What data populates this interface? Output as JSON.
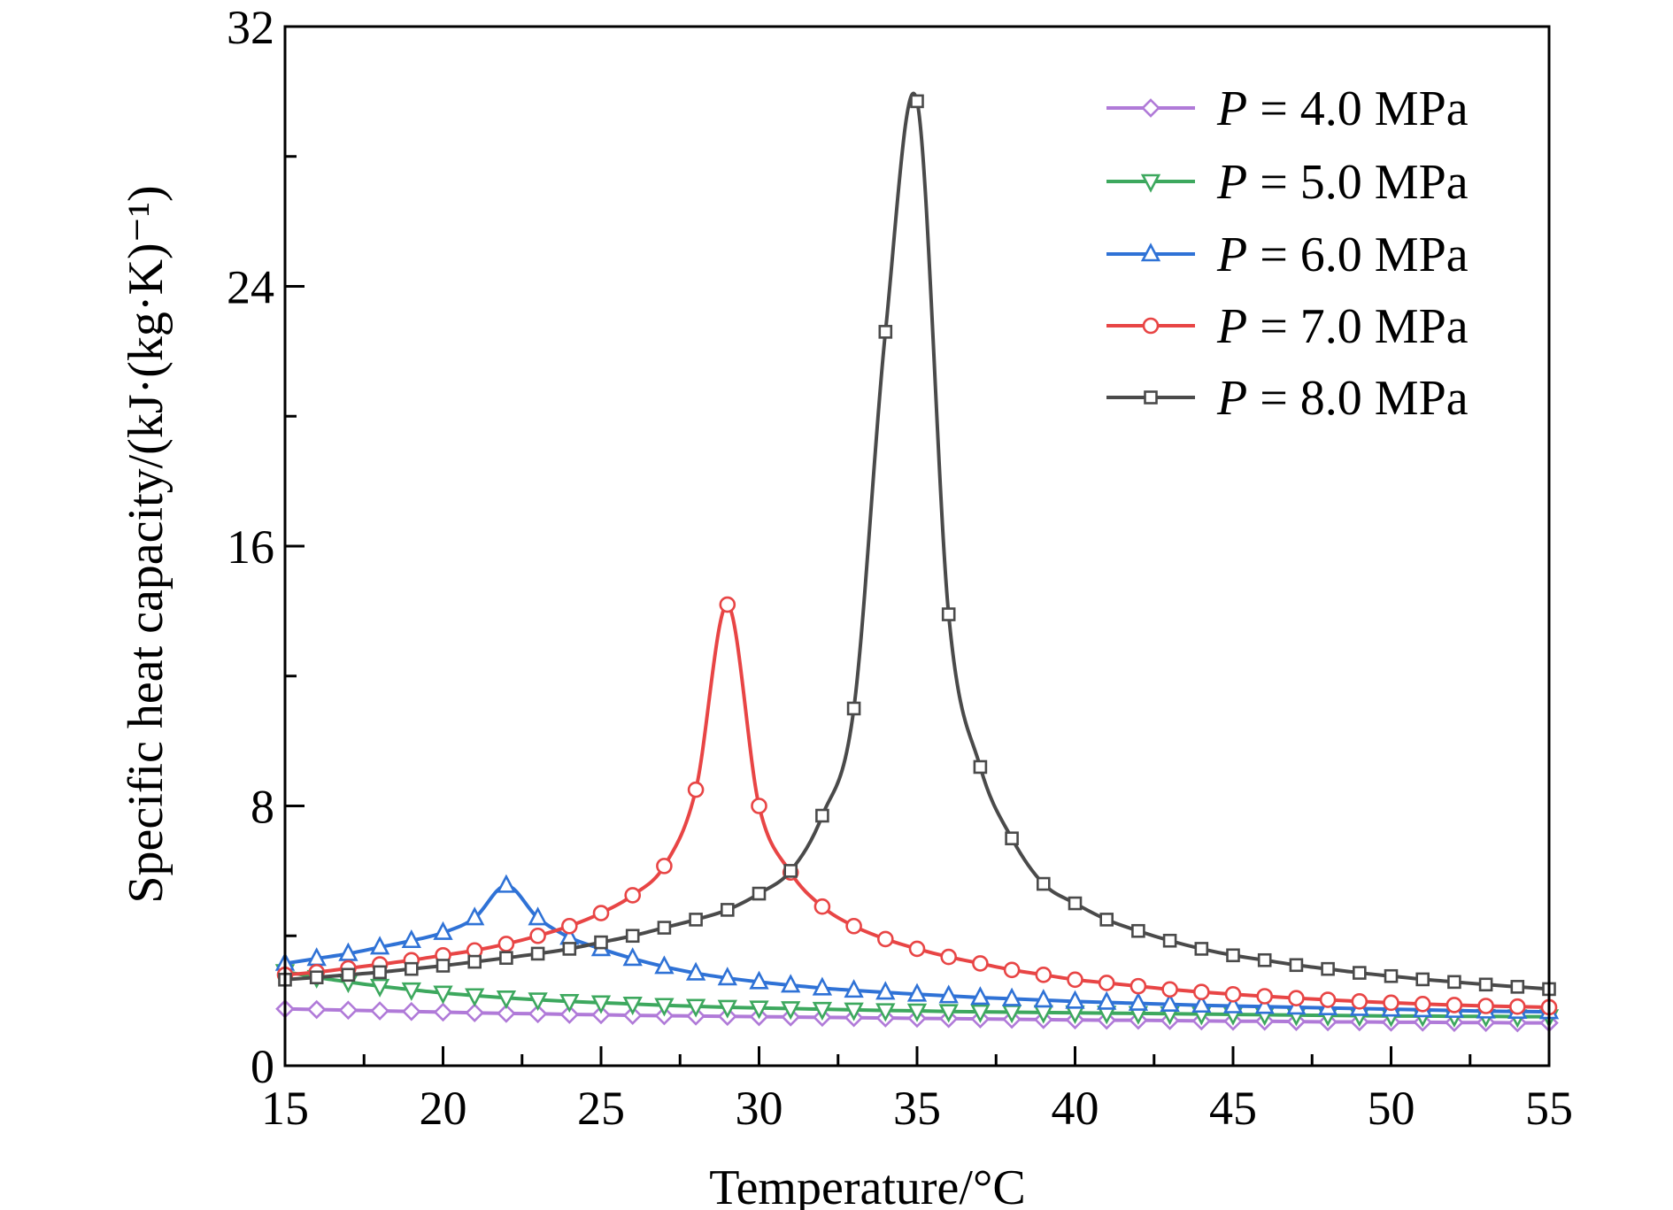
{
  "chart_data": {
    "type": "line",
    "title": "",
    "xlabel": "Temperature/°C",
    "ylabel": "Specific heat capacity/(kJ·(kg·K)⁻¹)",
    "xlim": [
      15,
      55
    ],
    "ylim": [
      0,
      32
    ],
    "xticks": [
      "15",
      "20",
      "25",
      "30",
      "35",
      "40",
      "45",
      "50",
      "55"
    ],
    "yticks": [
      "0",
      "8",
      "16",
      "24",
      "32"
    ],
    "legend_position": "top-right",
    "x": [
      15,
      16,
      17,
      18,
      19,
      20,
      21,
      22,
      23,
      24,
      25,
      26,
      27,
      28,
      29,
      30,
      31,
      32,
      33,
      34,
      35,
      36,
      37,
      38,
      39,
      40,
      41,
      42,
      43,
      44,
      45,
      46,
      47,
      48,
      49,
      50,
      51,
      52,
      53,
      54,
      55
    ],
    "series": [
      {
        "name": "P = 4.0 MPa",
        "legend_var": "P",
        "legend_rest": " = 4.0 MPa",
        "color": "#b07ad8",
        "marker": "diamond",
        "values": [
          1.75,
          1.73,
          1.71,
          1.69,
          1.67,
          1.65,
          1.63,
          1.61,
          1.6,
          1.58,
          1.57,
          1.55,
          1.54,
          1.53,
          1.52,
          1.51,
          1.5,
          1.49,
          1.48,
          1.47,
          1.46,
          1.45,
          1.44,
          1.43,
          1.42,
          1.41,
          1.4,
          1.4,
          1.39,
          1.38,
          1.37,
          1.37,
          1.36,
          1.35,
          1.35,
          1.34,
          1.34,
          1.33,
          1.33,
          1.32,
          1.32
        ]
      },
      {
        "name": "P = 5.0 MPa",
        "legend_var": "P",
        "legend_rest": " = 5.0 MPa",
        "color": "#3da85e",
        "marker": "triangle-down",
        "values": [
          2.9,
          2.72,
          2.58,
          2.45,
          2.34,
          2.24,
          2.16,
          2.09,
          2.03,
          1.98,
          1.94,
          1.9,
          1.86,
          1.83,
          1.8,
          1.78,
          1.76,
          1.74,
          1.72,
          1.7,
          1.69,
          1.67,
          1.66,
          1.65,
          1.64,
          1.63,
          1.62,
          1.61,
          1.6,
          1.59,
          1.58,
          1.57,
          1.56,
          1.55,
          1.54,
          1.53,
          1.53,
          1.52,
          1.52,
          1.51,
          1.51
        ]
      },
      {
        "name": "P = 6.0 MPa",
        "legend_var": "P",
        "legend_rest": " = 6.0 MPa",
        "color": "#2f72d6",
        "marker": "triangle-up",
        "values": [
          3.15,
          3.3,
          3.45,
          3.65,
          3.85,
          4.1,
          4.55,
          5.55,
          4.55,
          3.95,
          3.6,
          3.3,
          3.05,
          2.85,
          2.7,
          2.58,
          2.48,
          2.39,
          2.32,
          2.26,
          2.2,
          2.15,
          2.1,
          2.06,
          2.02,
          1.98,
          1.95,
          1.92,
          1.89,
          1.86,
          1.84,
          1.82,
          1.8,
          1.78,
          1.76,
          1.74,
          1.72,
          1.7,
          1.68,
          1.67,
          1.66
        ]
      },
      {
        "name": "P = 7.0 MPa",
        "legend_var": "P",
        "legend_rest": " = 7.0 MPa",
        "color": "#e84545",
        "marker": "circle",
        "values": [
          2.8,
          2.88,
          3.0,
          3.12,
          3.25,
          3.4,
          3.55,
          3.75,
          4.0,
          4.3,
          4.7,
          5.25,
          6.15,
          8.5,
          14.2,
          8.0,
          5.95,
          4.9,
          4.3,
          3.9,
          3.6,
          3.35,
          3.15,
          2.95,
          2.8,
          2.65,
          2.55,
          2.45,
          2.35,
          2.27,
          2.2,
          2.14,
          2.08,
          2.03,
          1.98,
          1.94,
          1.9,
          1.87,
          1.84,
          1.82,
          1.8
        ]
      },
      {
        "name": "P = 8.0 MPa",
        "legend_var": "P",
        "legend_rest": " = 8.0 MPa",
        "color": "#4a4a4a",
        "marker": "square",
        "values": [
          2.65,
          2.72,
          2.8,
          2.88,
          2.98,
          3.08,
          3.2,
          3.32,
          3.45,
          3.6,
          3.8,
          4.0,
          4.25,
          4.5,
          4.8,
          5.3,
          6.0,
          7.7,
          11.0,
          22.6,
          29.7,
          13.9,
          9.2,
          7.0,
          5.6,
          5.0,
          4.5,
          4.15,
          3.85,
          3.6,
          3.4,
          3.25,
          3.1,
          2.98,
          2.86,
          2.76,
          2.66,
          2.58,
          2.5,
          2.43,
          2.36
        ]
      }
    ]
  }
}
